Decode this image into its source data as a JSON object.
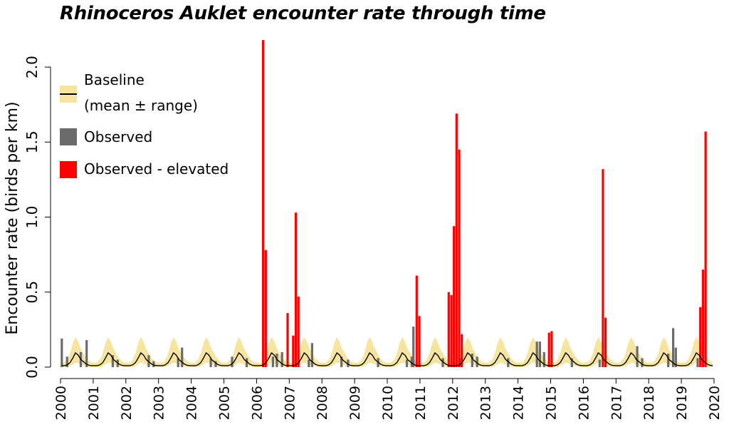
{
  "chart_data": {
    "type": "bar",
    "title": "Rhinoceros Auklet encounter rate through time",
    "ylabel": "Encounter rate (birds per km)",
    "xlabel": "",
    "ylim": [
      0,
      2.2
    ],
    "xlim": [
      2000,
      2020
    ],
    "yticks": [
      "0.0",
      "0.5",
      "1.0",
      "1.5",
      "2.0"
    ],
    "xticks": [
      "2000",
      "2001",
      "2002",
      "2003",
      "2004",
      "2005",
      "2006",
      "2007",
      "2008",
      "2009",
      "2010",
      "2011",
      "2012",
      "2013",
      "2014",
      "2015",
      "2016",
      "2017",
      "2018",
      "2019",
      "2020"
    ],
    "legend": {
      "baseline_line1": "Baseline",
      "baseline_line2": "(mean ± range)",
      "observed": "Observed",
      "elevated": "Observed - elevated"
    },
    "colors": {
      "baseline_range": "#f6e5a0",
      "baseline_mean": "#000000",
      "observed": "#6b6b6b",
      "elevated": "#ff0000"
    },
    "baseline": {
      "months": [
        1,
        2,
        3,
        4,
        5,
        6,
        7,
        8,
        9,
        10,
        11,
        12
      ],
      "mean": [
        0.01,
        0.01,
        0.015,
        0.03,
        0.06,
        0.095,
        0.08,
        0.05,
        0.035,
        0.02,
        0.012,
        0.01
      ],
      "upper": [
        0.03,
        0.03,
        0.05,
        0.09,
        0.16,
        0.2,
        0.17,
        0.12,
        0.09,
        0.06,
        0.04,
        0.03
      ],
      "lower": [
        0.0,
        0.0,
        0.0,
        0.005,
        0.02,
        0.03,
        0.025,
        0.015,
        0.01,
        0.005,
        0.0,
        0.0
      ]
    },
    "observed": [
      {
        "date": 2000.04,
        "value": 0.19
      },
      {
        "date": 2000.2,
        "value": 0.07
      },
      {
        "date": 2000.62,
        "value": 0.1
      },
      {
        "date": 2000.8,
        "value": 0.18
      },
      {
        "date": 2001.6,
        "value": 0.08
      },
      {
        "date": 2001.75,
        "value": 0.05
      },
      {
        "date": 2002.7,
        "value": 0.08
      },
      {
        "date": 2002.85,
        "value": 0.04
      },
      {
        "date": 2003.6,
        "value": 0.06
      },
      {
        "date": 2003.72,
        "value": 0.13
      },
      {
        "date": 2004.6,
        "value": 0.06
      },
      {
        "date": 2004.75,
        "value": 0.04
      },
      {
        "date": 2005.25,
        "value": 0.07
      },
      {
        "date": 2005.7,
        "value": 0.06
      },
      {
        "date": 2006.5,
        "value": 0.07
      },
      {
        "date": 2006.62,
        "value": 0.09
      },
      {
        "date": 2006.78,
        "value": 0.1
      },
      {
        "date": 2007.6,
        "value": 0.05
      },
      {
        "date": 2007.7,
        "value": 0.16
      },
      {
        "date": 2008.6,
        "value": 0.07
      },
      {
        "date": 2008.8,
        "value": 0.05
      },
      {
        "date": 2009.72,
        "value": 0.06
      },
      {
        "date": 2010.6,
        "value": 0.05
      },
      {
        "date": 2010.75,
        "value": 0.07
      },
      {
        "date": 2010.8,
        "value": 0.27
      },
      {
        "date": 2011.7,
        "value": 0.06
      },
      {
        "date": 2012.25,
        "value": 0.06
      },
      {
        "date": 2012.6,
        "value": 0.09
      },
      {
        "date": 2012.75,
        "value": 0.07
      },
      {
        "date": 2013.7,
        "value": 0.06
      },
      {
        "date": 2014.58,
        "value": 0.17
      },
      {
        "date": 2014.67,
        "value": 0.17
      },
      {
        "date": 2014.8,
        "value": 0.1
      },
      {
        "date": 2015.65,
        "value": 0.06
      },
      {
        "date": 2016.5,
        "value": 0.05
      },
      {
        "date": 2016.6,
        "value": 0.1
      },
      {
        "date": 2017.65,
        "value": 0.14
      },
      {
        "date": 2017.8,
        "value": 0.06
      },
      {
        "date": 2018.6,
        "value": 0.09
      },
      {
        "date": 2018.75,
        "value": 0.26
      },
      {
        "date": 2018.83,
        "value": 0.13
      },
      {
        "date": 2019.5,
        "value": 0.06
      }
    ],
    "elevated": [
      {
        "date": 2006.2,
        "value": 2.18
      },
      {
        "date": 2006.28,
        "value": 0.78
      },
      {
        "date": 2006.95,
        "value": 0.36
      },
      {
        "date": 2007.12,
        "value": 0.21
      },
      {
        "date": 2007.2,
        "value": 1.03
      },
      {
        "date": 2007.28,
        "value": 0.47
      },
      {
        "date": 2010.9,
        "value": 0.61
      },
      {
        "date": 2010.98,
        "value": 0.34
      },
      {
        "date": 2011.88,
        "value": 0.5
      },
      {
        "date": 2011.96,
        "value": 0.48
      },
      {
        "date": 2012.04,
        "value": 0.94
      },
      {
        "date": 2012.12,
        "value": 1.69
      },
      {
        "date": 2012.2,
        "value": 1.45
      },
      {
        "date": 2012.28,
        "value": 0.22
      },
      {
        "date": 2014.95,
        "value": 0.23
      },
      {
        "date": 2015.03,
        "value": 0.24
      },
      {
        "date": 2016.6,
        "value": 1.32
      },
      {
        "date": 2016.68,
        "value": 0.33
      },
      {
        "date": 2019.58,
        "value": 0.4
      },
      {
        "date": 2019.66,
        "value": 0.65
      },
      {
        "date": 2019.74,
        "value": 1.57
      }
    ]
  }
}
